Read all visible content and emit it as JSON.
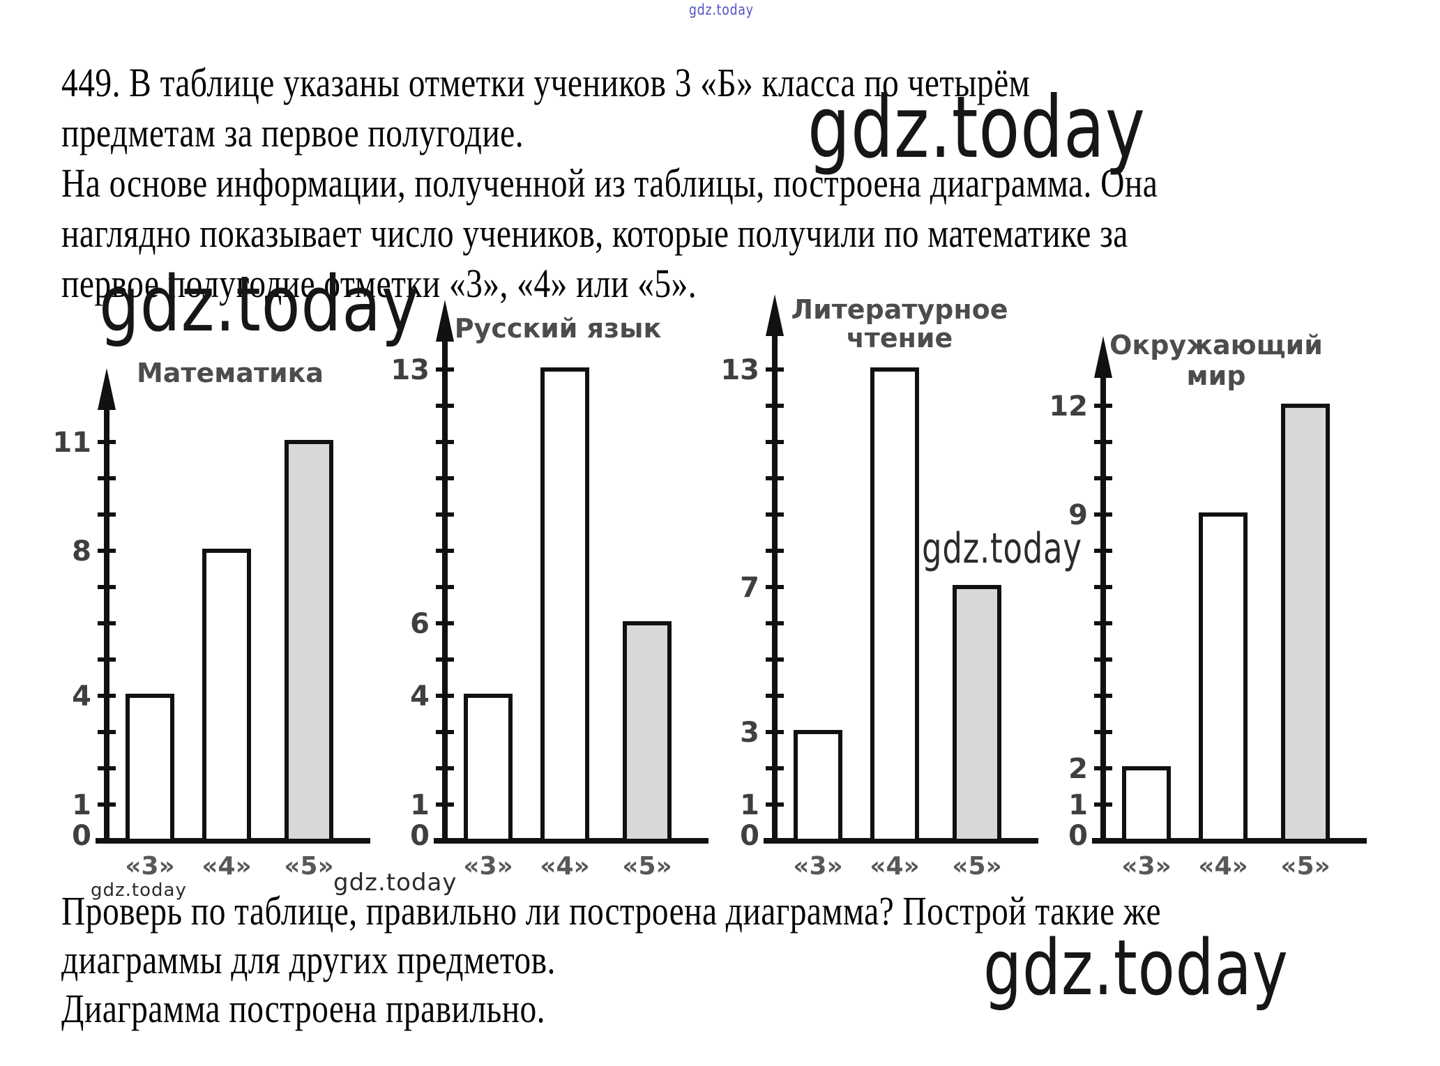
{
  "watermark": {
    "text": "gdz.today",
    "blue_color": "#5353c6"
  },
  "problem": {
    "lines": [
      "449. В таблице указаны отметки учеников 3 «Б» класса по четырём",
      "предметам за первое полугодие.",
      "На основе информации, полученной из таблицы, построена диаграмма. Она",
      "наглядно показывает число учеников, которые получили по математике за",
      "первое полугодие отметки «3», «4» или «5»."
    ]
  },
  "answer": {
    "lines": [
      "Проверь по таблице, правильно ли построена диаграмма? Построй такие же",
      "диаграммы для других предметов.",
      "Диаграмма построена правильно."
    ]
  },
  "chart_data": [
    {
      "type": "bar",
      "id": "matematika",
      "title_lines": [
        "Математика"
      ],
      "categories": [
        "«3»",
        "«4»",
        "«5»"
      ],
      "values": [
        4,
        8,
        11
      ],
      "labeled_ticks": [
        0,
        1,
        4,
        8,
        11
      ],
      "max_tick": 11,
      "bar_fills": [
        "#ffffff",
        "#ffffff",
        "#d8d8d8"
      ],
      "ylim": [
        0,
        13
      ],
      "xlabel": "",
      "ylabel": ""
    },
    {
      "type": "bar",
      "id": "russkij-yazyk",
      "title_lines": [
        "Русский язык"
      ],
      "categories": [
        "«3»",
        "«4»",
        "«5»"
      ],
      "values": [
        4,
        13,
        6
      ],
      "labeled_ticks": [
        0,
        1,
        4,
        6,
        13
      ],
      "max_tick": 13,
      "bar_fills": [
        "#ffffff",
        "#ffffff",
        "#d8d8d8"
      ],
      "ylim": [
        0,
        15
      ],
      "xlabel": "",
      "ylabel": ""
    },
    {
      "type": "bar",
      "id": "literaturnoe-chtenie",
      "title_lines": [
        "Литературное",
        "чтение"
      ],
      "categories": [
        "«3»",
        "«4»",
        "«5»"
      ],
      "values": [
        3,
        13,
        7
      ],
      "labeled_ticks": [
        0,
        1,
        3,
        7,
        13
      ],
      "max_tick": 13,
      "bar_fills": [
        "#ffffff",
        "#ffffff",
        "#d8d8d8"
      ],
      "ylim": [
        0,
        15
      ],
      "xlabel": "",
      "ylabel": ""
    },
    {
      "type": "bar",
      "id": "okruzhayushchij-mir",
      "title_lines": [
        "Окружающий",
        "мир"
      ],
      "categories": [
        "«3»",
        "«4»",
        "«5»"
      ],
      "values": [
        2,
        9,
        12
      ],
      "labeled_ticks": [
        0,
        1,
        2,
        9,
        12
      ],
      "max_tick": 12,
      "bar_fills": [
        "#ffffff",
        "#ffffff",
        "#d8d8d8"
      ],
      "ylim": [
        0,
        14
      ],
      "xlabel": "",
      "ylabel": ""
    }
  ]
}
